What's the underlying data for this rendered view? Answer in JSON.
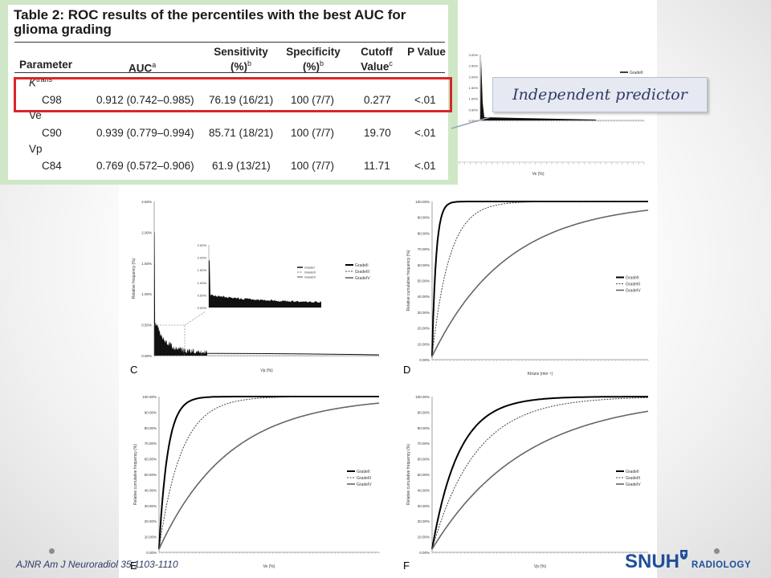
{
  "table": {
    "title": "Table 2: ROC results of the percentiles with the best AUC for glioma grading",
    "headers": {
      "parameter": "Parameter",
      "auc": "AUC",
      "auc_sup": "a",
      "sensitivity": "Sensitivity (%)",
      "sensitivity_sup": "b",
      "specificity": "Specificity (%)",
      "specificity_sup": "b",
      "cutoff": "Cutoff Value",
      "cutoff_sup": "c",
      "p": "P Value"
    },
    "groups": [
      {
        "name": "K",
        "name_sup": "trans",
        "row": {
          "percentile": "C98",
          "auc": "0.912 (0.742–0.985)",
          "sensitivity": "76.19 (16/21)",
          "specificity": "100 (7/7)",
          "cutoff": "0.277",
          "p": "<.01"
        }
      },
      {
        "name": "Ve",
        "name_sup": "",
        "row": {
          "percentile": "C90",
          "auc": "0.939 (0.779–0.994)",
          "sensitivity": "85.71 (18/21)",
          "specificity": "100 (7/7)",
          "cutoff": "19.70",
          "p": "<.01"
        }
      },
      {
        "name": "Vp",
        "name_sup": "",
        "row": {
          "percentile": "C84",
          "auc": "0.769 (0.572–0.906)",
          "sensitivity": "61.9 (13/21)",
          "specificity": "100 (7/7)",
          "cutoff": "11.71",
          "p": "<.01"
        }
      }
    ]
  },
  "callout": {
    "text": "Independent predictor"
  },
  "reference": "AJNR Am J Neuroradiol 35:1103-1110",
  "logo": {
    "main": "SNUH",
    "sub": "RADIOLOGY",
    "color": "#1f4e9a"
  },
  "panels": {
    "C": {
      "letter": "C",
      "type": "histogram",
      "ylabel": "Relative frequency (%)",
      "xlabel": "Vp (%)",
      "yticks": [
        "2.50%",
        "2.00%",
        "1.50%",
        "1.00%",
        "0.50%",
        "0.00%"
      ],
      "inset_yticks": [
        "2.50%",
        "2.00%",
        "1.50%",
        "1.00%",
        "0.50%",
        "0.00%"
      ],
      "legend": [
        "GradeII",
        "GradeIII",
        "GradeIV"
      ]
    },
    "D": {
      "letter": "D",
      "type": "cumulative",
      "ylabel": "Relative cumulative frequency (%)",
      "xlabel": "Ktrans (min⁻¹)",
      "yticks": [
        "100.00%",
        "90.00%",
        "80.00%",
        "70.00%",
        "60.00%",
        "50.00%",
        "40.00%",
        "30.00%",
        "20.00%",
        "10.00%",
        "0.00%"
      ],
      "legend": [
        "GradeII",
        "GradeIII",
        "GradeIV"
      ],
      "rates": [
        60,
        14,
        3.2
      ]
    },
    "E": {
      "letter": "E",
      "type": "cumulative",
      "ylabel": "Relative cumulative frequency (%)",
      "xlabel": "Ve (%)",
      "yticks": [
        "100.00%",
        "90.00%",
        "80.00%",
        "70.00%",
        "60.00%",
        "50.00%",
        "40.00%",
        "30.00%",
        "20.00%",
        "10.00%",
        "0.00%"
      ],
      "legend": [
        "GradeII",
        "GradeIII",
        "GradeIV"
      ],
      "rates": [
        28,
        11,
        3.5
      ]
    },
    "F": {
      "letter": "F",
      "type": "cumulative",
      "ylabel": "Relative cumulative frequency (%)",
      "xlabel": "Vp (%)",
      "yticks": [
        "100.00%",
        "90.00%",
        "80.00%",
        "70.00%",
        "60.00%",
        "50.00%",
        "40.00%",
        "30.00%",
        "20.00%",
        "10.00%",
        "0.00%"
      ],
      "legend": [
        "GradeII",
        "GradeIII",
        "GradeIV"
      ],
      "rates": [
        9,
        5.5,
        2.6
      ]
    },
    "B": {
      "type": "histogram",
      "xlabel": "Ve (%)",
      "yticks": [
        "3.00%",
        "2.50%",
        "2.00%",
        "1.50%",
        "1.00%",
        "0.50%",
        "0.00%"
      ],
      "legend": [
        "GradeII"
      ]
    }
  }
}
